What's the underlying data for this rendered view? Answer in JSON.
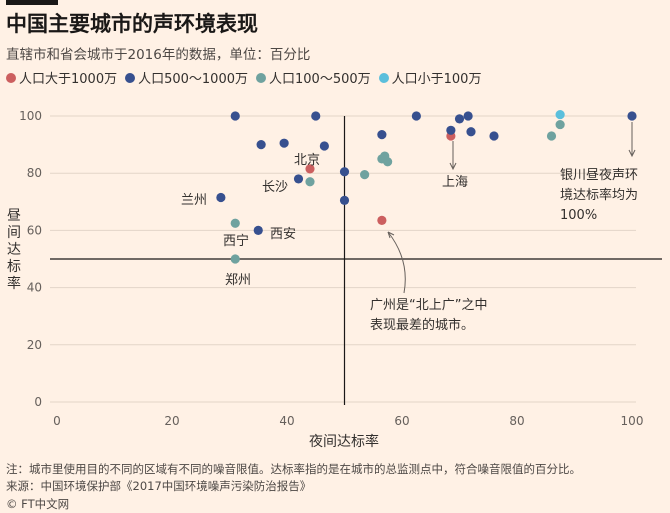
{
  "header": {
    "title": "中国主要城市的声环境表现",
    "subtitle": "直辖市和省会城市于2016年的数据，单位：百分比"
  },
  "legend": [
    {
      "label": "人口大于1000万",
      "color": "#cc5f5f"
    },
    {
      "label": "人口500～1000万",
      "color": "#37508f"
    },
    {
      "label": "人口100～500万",
      "color": "#6fa29f"
    },
    {
      "label": "人口小于100万",
      "color": "#5bbfdc"
    }
  ],
  "footer": {
    "note": "注：城市里使用目的不同的区域有不同的噪音限值。达标率指的是在城市的总监测点中，符合噪音限值的百分比。",
    "source": "来源：中国环境保护部《2017中国环境噪声污染防治报告》",
    "brand": "© FT中文网"
  },
  "chart_data": {
    "type": "scatter",
    "xlabel": "夜间达标率",
    "ylabel": "昼间达标率",
    "xlim": [
      0,
      100
    ],
    "ylim": [
      0,
      100
    ],
    "xticks": [
      "0",
      "20",
      "40",
      "60",
      "80",
      "100"
    ],
    "yticks": [
      "0",
      "20",
      "40",
      "60",
      "80",
      "100"
    ],
    "reference_lines": {
      "x": 50,
      "y": 50
    },
    "grid": "horizontal",
    "series": [
      {
        "name": "人口大于1000万",
        "color": "#cc5f5f",
        "points": [
          [
            44,
            81.5
          ],
          [
            56.5,
            63.5
          ],
          [
            68.5,
            93
          ]
        ]
      },
      {
        "name": "人口500～1000万",
        "color": "#37508f",
        "points": [
          [
            31,
            100
          ],
          [
            45,
            100
          ],
          [
            62.5,
            100
          ],
          [
            71.5,
            100
          ],
          [
            100,
            100
          ],
          [
            70,
            99
          ],
          [
            68.5,
            95
          ],
          [
            72,
            94.5
          ],
          [
            76,
            93
          ],
          [
            56.5,
            93.5
          ],
          [
            35.5,
            90
          ],
          [
            39.5,
            90.5
          ],
          [
            46.5,
            89.5
          ],
          [
            50,
            80.5
          ],
          [
            42,
            78
          ],
          [
            28.5,
            71.5
          ],
          [
            50,
            70.5
          ],
          [
            35,
            60
          ]
        ]
      },
      {
        "name": "人口100～500万",
        "color": "#6fa29f",
        "points": [
          [
            44,
            77
          ],
          [
            53.5,
            79.5
          ],
          [
            56.5,
            85
          ],
          [
            57,
            86
          ],
          [
            57.5,
            84
          ],
          [
            86,
            93
          ],
          [
            87.5,
            97
          ],
          [
            31,
            62.5
          ],
          [
            31,
            50
          ]
        ]
      },
      {
        "name": "人口小于100万",
        "color": "#5bbfdc",
        "points": [
          [
            87.5,
            100.5
          ]
        ]
      }
    ],
    "labels": [
      {
        "text": "北京"
      },
      {
        "text": "长沙"
      },
      {
        "text": "兰州"
      },
      {
        "text": "西宁"
      },
      {
        "text": "西安"
      },
      {
        "text": "郑州"
      },
      {
        "text": "上海"
      }
    ],
    "annotations": [
      {
        "lines": [
          "广州是“北上广”之中",
          "表现最差的城市。"
        ]
      },
      {
        "lines": [
          "银川昼夜声环",
          "境达标率均为",
          "100%"
        ]
      }
    ]
  }
}
